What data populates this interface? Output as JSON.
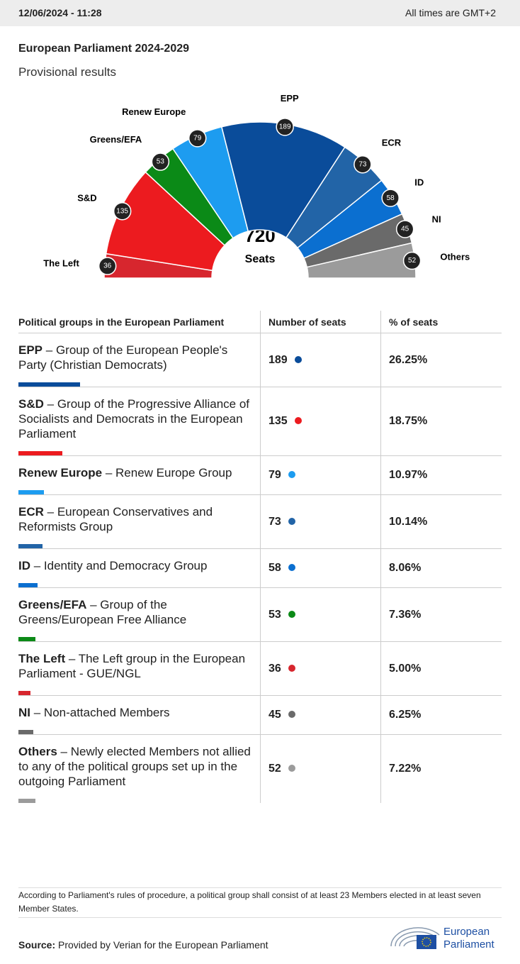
{
  "header": {
    "datetime": "12/06/2024 - 11:28",
    "timezone": "All times are GMT+2"
  },
  "title": "European Parliament 2024-2029",
  "subtitle": "Provisional results",
  "chart_data": {
    "type": "hemicycle",
    "categories": [
      "The Left",
      "S&D",
      "Greens/EFA",
      "Renew Europe",
      "EPP",
      "ECR",
      "ID",
      "NI",
      "Others"
    ],
    "values": [
      36,
      135,
      53,
      79,
      189,
      73,
      58,
      45,
      52
    ],
    "colors": [
      "#d7262e",
      "#ec1b1f",
      "#0b8a17",
      "#1d9cf0",
      "#0a4c9a",
      "#2264a7",
      "#0b6fd0",
      "#6a6a6a",
      "#9b9b9b"
    ],
    "total": 720,
    "total_label": "Seats"
  },
  "table": {
    "headers": [
      "Political groups in the European Parliament",
      "Number of seats",
      "% of seats"
    ],
    "rows": [
      {
        "name": "EPP",
        "desc": "– Group of the European People's Party (Christian Democrats)",
        "seats": 189,
        "pct": "26.25%",
        "color": "#0a4c9a"
      },
      {
        "name": "S&D",
        "desc": "– Group of the Progressive Alliance of Socialists and Democrats in the European Parliament",
        "seats": 135,
        "pct": "18.75%",
        "color": "#ec1b1f"
      },
      {
        "name": "Renew Europe",
        "desc": "– Renew Europe Group",
        "seats": 79,
        "pct": "10.97%",
        "color": "#1d9cf0"
      },
      {
        "name": "ECR",
        "desc": "– European Conservatives and Reformists Group",
        "seats": 73,
        "pct": "10.14%",
        "color": "#2264a7"
      },
      {
        "name": "ID",
        "desc": "– Identity and Democracy Group",
        "seats": 58,
        "pct": "8.06%",
        "color": "#0b6fd0"
      },
      {
        "name": "Greens/EFA",
        "desc": "– Group of the Greens/European Free Alliance",
        "seats": 53,
        "pct": "7.36%",
        "color": "#0b8a17"
      },
      {
        "name": "The Left",
        "desc": "– The Left group in the European Parliament - GUE/NGL",
        "seats": 36,
        "pct": "5.00%",
        "color": "#d7262e"
      },
      {
        "name": "NI",
        "desc": "– Non-attached Members",
        "seats": 45,
        "pct": "6.25%",
        "color": "#6a6a6a"
      },
      {
        "name": "Others",
        "desc": "– Newly elected Members not allied to any of the political groups set up in the outgoing Parliament",
        "seats": 52,
        "pct": "7.22%",
        "color": "#9b9b9b"
      }
    ]
  },
  "footnote": "According to Parliament's rules of procedure, a political group shall consist of at least 23 Members elected in at least seven Member States.",
  "source": {
    "label": "Source:",
    "text": "Provided by Verian for the European Parliament"
  },
  "logo": {
    "line1": "European",
    "line2": "Parliament"
  }
}
